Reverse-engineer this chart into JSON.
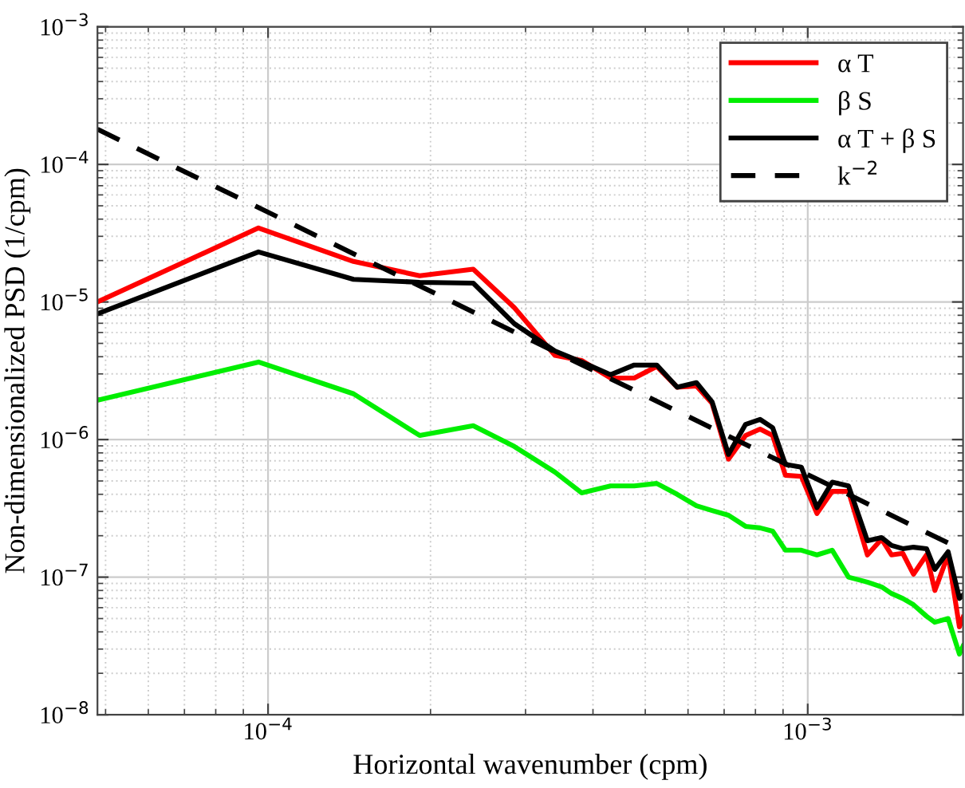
{
  "chart_data": {
    "type": "line",
    "xlabel": "Horizontal wavenumber (cpm)",
    "ylabel": "Non-dimensionalized PSD (1/cpm)",
    "log": "xy",
    "grid": true,
    "legend": "top right",
    "line_style": "solid",
    "marker": "none",
    "xlim": [
      4.83e-05,
      0.00194
    ],
    "ylim": [
      1e-08,
      0.001
    ],
    "xticks": [
      {
        "value": 0.0001,
        "label": "10$^{−4}$"
      },
      {
        "value": 0.001,
        "label": "10$^{−3}$"
      }
    ],
    "yticks": [
      {
        "value": 1e-08,
        "label": "10$^{−8}$"
      },
      {
        "value": 1e-07,
        "label": "10$^{−7}$"
      },
      {
        "value": 1e-06,
        "label": "10$^{−6}$"
      },
      {
        "value": 1e-05,
        "label": "10$^{−5}$"
      },
      {
        "value": 0.0001,
        "label": "10$^{−4}$"
      },
      {
        "value": 0.001,
        "label": "10$^{−3}$"
      }
    ],
    "x": [
      4.83e-05,
      9.6e-05,
      0.000144,
      0.000191,
      0.00024,
      0.000286,
      0.00034,
      0.000381,
      0.000431,
      0.000477,
      0.000525,
      0.000573,
      0.000622,
      0.000665,
      0.000713,
      0.000767,
      0.000816,
      0.000861,
      0.000909,
      0.000973,
      0.00104,
      0.00111,
      0.00119,
      0.00129,
      0.00137,
      0.00143,
      0.0015,
      0.00157,
      0.00166,
      0.00172,
      0.00182,
      0.00191,
      0.00194
    ],
    "series": [
      {
        "name": "α T",
        "color": "#ff0000",
        "values": [
          1e-05,
          3.45e-05,
          1.97e-05,
          1.55e-05,
          1.73e-05,
          9.1e-06,
          4.1e-06,
          3.76e-06,
          2.8e-06,
          2.8e-06,
          3.4e-06,
          2.4e-06,
          2.45e-06,
          1.83e-06,
          7.2e-07,
          1.07e-06,
          1.19e-06,
          1.07e-06,
          5.5e-07,
          5.4e-07,
          2.9e-07,
          4.2e-07,
          4.2e-07,
          1.45e-07,
          1.89e-07,
          1.45e-07,
          1.49e-07,
          1.05e-07,
          1.45e-07,
          8e-08,
          1.45e-07,
          4.35e-08,
          5.1e-08
        ]
      },
      {
        "name": "β S",
        "color": "#00ee00",
        "values": [
          1.93e-06,
          3.66e-06,
          2.15e-06,
          1.07e-06,
          1.26e-06,
          8.9e-07,
          5.8e-07,
          4.1e-07,
          4.6e-07,
          4.6e-07,
          4.8e-07,
          4e-07,
          3.3e-07,
          3.05e-07,
          2.82e-07,
          2.34e-07,
          2.28e-07,
          2.16e-07,
          1.57e-07,
          1.57e-07,
          1.45e-07,
          1.57e-07,
          1e-07,
          9.2e-08,
          8.5e-08,
          7.6e-08,
          7e-08,
          6.3e-08,
          5.2e-08,
          4.7e-08,
          5e-08,
          2.76e-08,
          3.15e-08
        ]
      },
      {
        "name": "α T + β S",
        "color": "#000000",
        "values": [
          8.2e-06,
          2.31e-05,
          1.46e-05,
          1.39e-05,
          1.37e-05,
          6.95e-06,
          4.4e-06,
          3.66e-06,
          2.96e-06,
          3.48e-06,
          3.48e-06,
          2.4e-06,
          2.59e-06,
          1.88e-06,
          7.8e-07,
          1.29e-06,
          1.4e-06,
          1.22e-06,
          6.6e-07,
          6.3e-07,
          3.2e-07,
          4.9e-07,
          4.6e-07,
          1.84e-07,
          1.94e-07,
          1.7e-07,
          1.61e-07,
          1.65e-07,
          1.61e-07,
          1.14e-07,
          1.53e-07,
          7e-08,
          7.4e-08
        ]
      },
      {
        "name": "k$^{−2}$",
        "color": "#000000",
        "line_style": "dashed",
        "x": [
          4.83e-05,
          0.00194
        ],
        "values": [
          0.00018,
          1.57e-07
        ]
      }
    ]
  }
}
